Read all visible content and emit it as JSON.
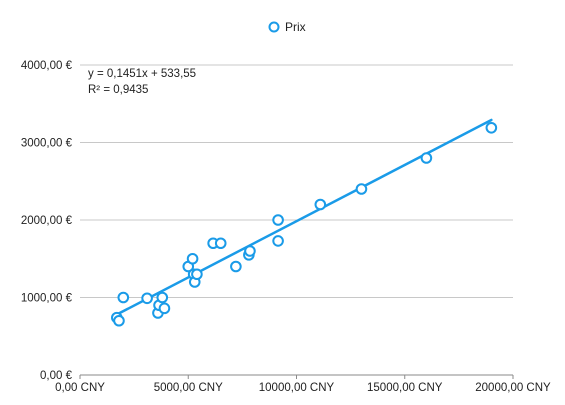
{
  "chart_data": {
    "type": "scatter",
    "legend": {
      "label": "Prix",
      "position": "top-center"
    },
    "series": [
      {
        "name": "Prix",
        "color": "#1a9be8",
        "x": [
          1700,
          1800,
          2000,
          3100,
          3600,
          3650,
          3800,
          3900,
          5000,
          5200,
          5250,
          5300,
          5400,
          6150,
          6500,
          7200,
          7800,
          7850,
          9150,
          9150,
          11100,
          13000,
          16000,
          19000
        ],
        "y": [
          740,
          700,
          1000,
          990,
          800,
          900,
          1000,
          860,
          1400,
          1500,
          1300,
          1200,
          1300,
          1700,
          1700,
          1400,
          1550,
          1600,
          2000,
          1730,
          2200,
          2400,
          2800,
          3190
        ]
      }
    ],
    "trendline": {
      "slope": 0.1451,
      "intercept": 533.55,
      "x_range": [
        1700,
        19000
      ],
      "equation": "y = 0,1451x + 533,55",
      "r_squared": "R² = 0,9435"
    },
    "xlim": [
      0,
      20000
    ],
    "ylim": [
      0,
      4000
    ],
    "x_ticks": [
      {
        "value": 0,
        "label": "0,00 CNY"
      },
      {
        "value": 5000,
        "label": "5000,00 CNY"
      },
      {
        "value": 10000,
        "label": "10000,00 CNY"
      },
      {
        "value": 15000,
        "label": "15000,00 CNY"
      },
      {
        "value": 20000,
        "label": "20000,00 CNY"
      }
    ],
    "y_ticks": [
      {
        "value": 0,
        "label": "0,00 €"
      },
      {
        "value": 1000,
        "label": "1000,00 €"
      },
      {
        "value": 2000,
        "label": "2000,00 €"
      },
      {
        "value": 3000,
        "label": "3000,00 €"
      },
      {
        "value": 4000,
        "label": "4000,00 €"
      }
    ],
    "grid": true
  }
}
